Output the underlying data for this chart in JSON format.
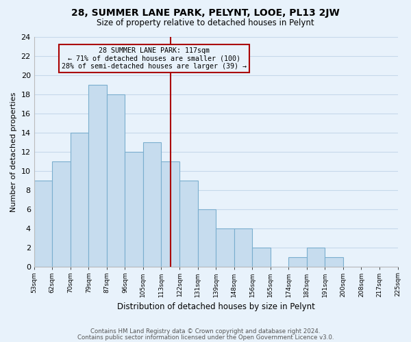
{
  "title": "28, SUMMER LANE PARK, PELYNT, LOOE, PL13 2JW",
  "subtitle": "Size of property relative to detached houses in Pelynt",
  "xlabel": "Distribution of detached houses by size in Pelynt",
  "ylabel": "Number of detached properties",
  "bin_labels": [
    "53sqm",
    "62sqm",
    "70sqm",
    "79sqm",
    "87sqm",
    "96sqm",
    "105sqm",
    "113sqm",
    "122sqm",
    "131sqm",
    "139sqm",
    "148sqm",
    "156sqm",
    "165sqm",
    "174sqm",
    "182sqm",
    "191sqm",
    "200sqm",
    "208sqm",
    "217sqm",
    "225sqm"
  ],
  "bar_heights": [
    9,
    11,
    14,
    19,
    18,
    12,
    13,
    11,
    9,
    6,
    4,
    4,
    2,
    0,
    1,
    2,
    1,
    0,
    0,
    0
  ],
  "bar_color": "#c6dcee",
  "bar_edge_color": "#7aaece",
  "grid_color": "#c5d8ea",
  "background_color": "#e8f2fb",
  "red_line_color": "#aa0000",
  "annotation_line1": "28 SUMMER LANE PARK: 117sqm",
  "annotation_line2": "← 71% of detached houses are smaller (100)",
  "annotation_line3": "28% of semi-detached houses are larger (39) →",
  "annotation_box_edge_color": "#aa0000",
  "red_line_bar_index": 7.5,
  "ylim": [
    0,
    24
  ],
  "yticks": [
    0,
    2,
    4,
    6,
    8,
    10,
    12,
    14,
    16,
    18,
    20,
    22,
    24
  ],
  "footnote1": "Contains HM Land Registry data © Crown copyright and database right 2024.",
  "footnote2": "Contains public sector information licensed under the Open Government Licence v3.0."
}
